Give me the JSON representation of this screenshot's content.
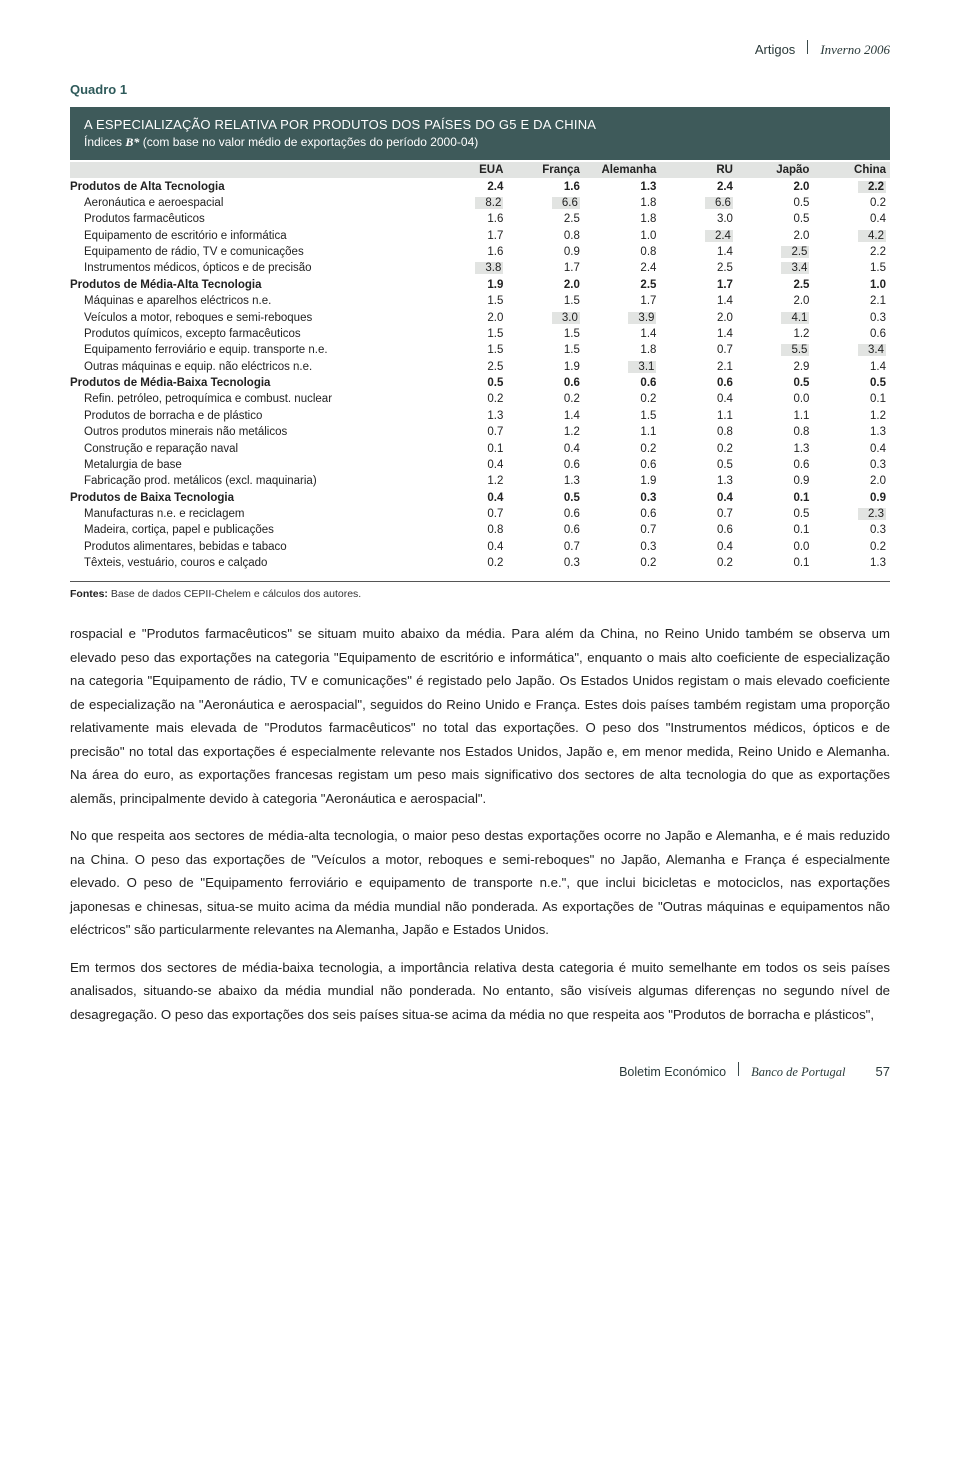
{
  "header": {
    "left": "Artigos",
    "right": "Inverno 2006"
  },
  "footer": {
    "left": "Boletim Económico",
    "right": "Banco de Portugal",
    "page": "57"
  },
  "table": {
    "type": "table",
    "caption": "Quadro 1",
    "title_l1": "A ESPECIALIZAÇÃO RELATIVA POR PRODUTOS DOS PAÍSES DO G5 E DA CHINA",
    "title_l2_a": "Índices ",
    "title_l2_b": "B*",
    "title_l2_c": " (com base no valor médio de exportações do período 2000-04)",
    "columns": [
      "",
      "EUA",
      "França",
      "Alemanha",
      "RU",
      "Japão",
      "China"
    ],
    "colors": {
      "header_bg": "#3e5a5a",
      "header_text": "#ffffff",
      "band_bg": "#e2e4e2",
      "highlight_bg": "#e2e4e2",
      "text": "#222222"
    },
    "col_widths_pct": [
      44,
      9.33,
      9.33,
      9.33,
      9.33,
      9.33,
      9.33
    ],
    "font_size_pt": 9,
    "rows": [
      {
        "indent": 0,
        "bold": true,
        "label": "Produtos de Alta Tecnologia",
        "vals": [
          "2.4",
          "1.6",
          "1.3",
          "2.4",
          "2.0",
          "2.2"
        ],
        "hl": [
          false,
          false,
          false,
          false,
          false,
          true
        ]
      },
      {
        "indent": 1,
        "label": "Aeronáutica e aeroespacial",
        "vals": [
          "8.2",
          "6.6",
          "1.8",
          "6.6",
          "0.5",
          "0.2"
        ],
        "hl": [
          true,
          true,
          false,
          true,
          false,
          false
        ]
      },
      {
        "indent": 1,
        "label": "Produtos farmacêuticos",
        "vals": [
          "1.6",
          "2.5",
          "1.8",
          "3.0",
          "0.5",
          "0.4"
        ],
        "hl": [
          false,
          false,
          false,
          false,
          false,
          false
        ]
      },
      {
        "indent": 1,
        "label": "Equipamento de escritório e informática",
        "vals": [
          "1.7",
          "0.8",
          "1.0",
          "2.4",
          "2.0",
          "4.2"
        ],
        "hl": [
          false,
          false,
          false,
          true,
          false,
          true
        ]
      },
      {
        "indent": 1,
        "label": "Equipamento de rádio, TV e comunicações",
        "vals": [
          "1.6",
          "0.9",
          "0.8",
          "1.4",
          "2.5",
          "2.2"
        ],
        "hl": [
          false,
          false,
          false,
          false,
          true,
          false
        ]
      },
      {
        "indent": 1,
        "label": "Instrumentos médicos, ópticos e de precisão",
        "vals": [
          "3.8",
          "1.7",
          "2.4",
          "2.5",
          "3.4",
          "1.5"
        ],
        "hl": [
          true,
          false,
          false,
          false,
          true,
          false
        ]
      },
      {
        "indent": 0,
        "bold": true,
        "label": "Produtos de Média-Alta Tecnologia",
        "vals": [
          "1.9",
          "2.0",
          "2.5",
          "1.7",
          "2.5",
          "1.0"
        ],
        "hl": [
          false,
          false,
          false,
          false,
          false,
          false
        ]
      },
      {
        "indent": 1,
        "label": "Máquinas e aparelhos eléctricos n.e.",
        "vals": [
          "1.5",
          "1.5",
          "1.7",
          "1.4",
          "2.0",
          "2.1"
        ],
        "hl": [
          false,
          false,
          false,
          false,
          false,
          false
        ]
      },
      {
        "indent": 1,
        "label": "Veículos a motor, reboques e semi-reboques",
        "vals": [
          "2.0",
          "3.0",
          "3.9",
          "2.0",
          "4.1",
          "0.3"
        ],
        "hl": [
          false,
          true,
          true,
          false,
          true,
          false
        ]
      },
      {
        "indent": 1,
        "label": "Produtos químicos, excepto farmacêuticos",
        "vals": [
          "1.5",
          "1.5",
          "1.4",
          "1.4",
          "1.2",
          "0.6"
        ],
        "hl": [
          false,
          false,
          false,
          false,
          false,
          false
        ]
      },
      {
        "indent": 1,
        "label": "Equipamento ferroviário e equip. transporte n.e.",
        "vals": [
          "1.5",
          "1.5",
          "1.8",
          "0.7",
          "5.5",
          "3.4"
        ],
        "hl": [
          false,
          false,
          false,
          false,
          true,
          true
        ]
      },
      {
        "indent": 1,
        "label": "Outras máquinas e equip. não eléctricos n.e.",
        "vals": [
          "2.5",
          "1.9",
          "3.1",
          "2.1",
          "2.9",
          "1.4"
        ],
        "hl": [
          false,
          false,
          true,
          false,
          false,
          false
        ]
      },
      {
        "indent": 0,
        "bold": true,
        "label": "Produtos de Média-Baixa Tecnologia",
        "vals": [
          "0.5",
          "0.6",
          "0.6",
          "0.6",
          "0.5",
          "0.5"
        ],
        "hl": [
          false,
          false,
          false,
          false,
          false,
          false
        ]
      },
      {
        "indent": 1,
        "label": "Refin. petróleo, petroquímica e combust. nuclear",
        "vals": [
          "0.2",
          "0.2",
          "0.2",
          "0.4",
          "0.0",
          "0.1"
        ],
        "hl": [
          false,
          false,
          false,
          false,
          false,
          false
        ]
      },
      {
        "indent": 1,
        "label": "Produtos de borracha e de plástico",
        "vals": [
          "1.3",
          "1.4",
          "1.5",
          "1.1",
          "1.1",
          "1.2"
        ],
        "hl": [
          false,
          false,
          false,
          false,
          false,
          false
        ]
      },
      {
        "indent": 1,
        "label": "Outros produtos minerais não metálicos",
        "vals": [
          "0.7",
          "1.2",
          "1.1",
          "0.8",
          "0.8",
          "1.3"
        ],
        "hl": [
          false,
          false,
          false,
          false,
          false,
          false
        ]
      },
      {
        "indent": 1,
        "label": "Construção e reparação naval",
        "vals": [
          "0.1",
          "0.4",
          "0.2",
          "0.2",
          "1.3",
          "0.4"
        ],
        "hl": [
          false,
          false,
          false,
          false,
          false,
          false
        ]
      },
      {
        "indent": 1,
        "label": "Metalurgia de base",
        "vals": [
          "0.4",
          "0.6",
          "0.6",
          "0.5",
          "0.6",
          "0.3"
        ],
        "hl": [
          false,
          false,
          false,
          false,
          false,
          false
        ]
      },
      {
        "indent": 1,
        "label": "Fabricação prod. metálicos (excl. maquinaria)",
        "vals": [
          "1.2",
          "1.3",
          "1.9",
          "1.3",
          "0.9",
          "2.0"
        ],
        "hl": [
          false,
          false,
          false,
          false,
          false,
          false
        ]
      },
      {
        "indent": 0,
        "bold": true,
        "label": "Produtos de Baixa Tecnologia",
        "vals": [
          "0.4",
          "0.5",
          "0.3",
          "0.4",
          "0.1",
          "0.9"
        ],
        "hl": [
          false,
          false,
          false,
          false,
          false,
          false
        ]
      },
      {
        "indent": 1,
        "label": "Manufacturas n.e. e reciclagem",
        "vals": [
          "0.7",
          "0.6",
          "0.6",
          "0.7",
          "0.5",
          "2.3"
        ],
        "hl": [
          false,
          false,
          false,
          false,
          false,
          true
        ]
      },
      {
        "indent": 1,
        "label": "Madeira, cortiça, papel e publicações",
        "vals": [
          "0.8",
          "0.6",
          "0.7",
          "0.6",
          "0.1",
          "0.3"
        ],
        "hl": [
          false,
          false,
          false,
          false,
          false,
          false
        ]
      },
      {
        "indent": 1,
        "label": "Produtos alimentares, bebidas e tabaco",
        "vals": [
          "0.4",
          "0.7",
          "0.3",
          "0.4",
          "0.0",
          "0.2"
        ],
        "hl": [
          false,
          false,
          false,
          false,
          false,
          false
        ]
      },
      {
        "indent": 1,
        "label": "Têxteis, vestuário, couros e calçado",
        "vals": [
          "0.2",
          "0.3",
          "0.2",
          "0.2",
          "0.1",
          "1.3"
        ],
        "hl": [
          false,
          false,
          false,
          false,
          false,
          false
        ]
      }
    ],
    "sources_label": "Fontes:",
    "sources_text": " Base de dados CEPII-Chelem e cálculos dos autores."
  },
  "paragraphs": [
    "rospacial e \"Produtos farmacêuticos\" se situam muito abaixo da média. Para além da China, no Reino Unido também se observa um elevado peso das exportações na categoria \"Equipamento de escritório e informática\", enquanto o mais alto coeficiente de especialização na categoria \"Equipamento de rádio, TV e comunicações\" é registado pelo Japão. Os Estados Unidos registam o mais elevado coeficiente de especialização na \"Aeronáutica e aerospacial\", seguidos do Reino Unido e França. Estes dois países também registam uma proporção relativamente mais elevada de \"Produtos farmacêuticos\" no total das exportações. O peso dos \"Instrumentos médicos, ópticos e de precisão\" no total das exportações é especialmente relevante nos Estados Unidos, Japão e, em menor medida, Reino Unido e Alemanha. Na área do euro, as exportações francesas registam um peso mais significativo dos sectores de alta tecnologia do que as exportações alemãs, principalmente devido à categoria \"Aeronáutica e aerospacial\".",
    "No que respeita aos sectores de média-alta tecnologia, o maior peso destas exportações ocorre no Japão e Alemanha, e é mais reduzido na China. O peso das exportações de \"Veículos a motor, reboques e semi-reboques\" no Japão, Alemanha e França é especialmente elevado. O peso de \"Equipamento ferroviário e equipamento de transporte n.e.\", que inclui bicicletas e motociclos, nas exportações japonesas e chinesas, situa-se muito acima da média mundial não ponderada. As exportações de \"Outras máquinas e equipamentos não eléctricos\" são particularmente relevantes na Alemanha, Japão e Estados Unidos.",
    "Em termos dos sectores de média-baixa tecnologia, a importância relativa desta categoria é muito semelhante em todos os seis países analisados, situando-se abaixo da média mundial não ponderada. No entanto, são visíveis algumas diferenças no segundo nível de desagregação. O peso das exportações dos seis países situa-se acima da média no que respeita aos \"Produtos de borracha e plásticos\","
  ]
}
